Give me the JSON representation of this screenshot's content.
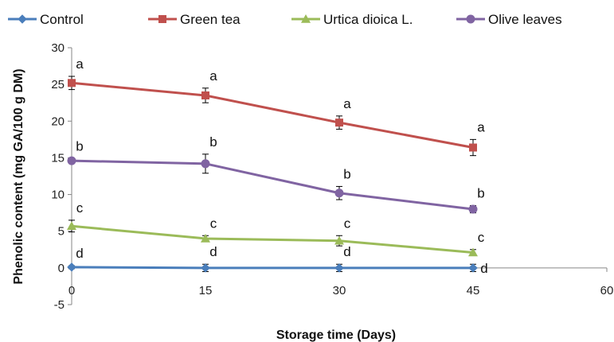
{
  "chart_data": {
    "type": "line",
    "xlabel": "Storage time (Days)",
    "ylabel": "Phenolic content (mg GA/100 g DM)",
    "x": [
      0,
      15,
      30,
      45
    ],
    "xlim": [
      0,
      60
    ],
    "xticks": [
      0,
      15,
      30,
      45,
      60
    ],
    "ylim": [
      -5,
      30
    ],
    "yticks": [
      -5,
      0,
      5,
      10,
      15,
      20,
      25,
      30
    ],
    "grid": false,
    "legend_position": "top",
    "series": [
      {
        "name": "Control",
        "color": "#4a7ebb",
        "marker": "diamond",
        "values": [
          0.1,
          0.0,
          0.0,
          0.0
        ],
        "errors": [
          0.2,
          0.5,
          0.5,
          0.5
        ],
        "labels": [
          "d",
          "d",
          "d",
          "d"
        ]
      },
      {
        "name": "Green tea",
        "color": "#c0504d",
        "marker": "square",
        "values": [
          25.2,
          23.5,
          19.8,
          16.4
        ],
        "errors": [
          0.9,
          1.0,
          0.9,
          1.1
        ],
        "labels": [
          "a",
          "a",
          "a",
          "a"
        ]
      },
      {
        "name": "Urtica dioica L.",
        "color": "#9bbb59",
        "marker": "triangle",
        "values": [
          5.7,
          4.0,
          3.7,
          2.1
        ],
        "errors": [
          0.8,
          0.4,
          0.7,
          0.4
        ],
        "labels": [
          "c",
          "c",
          "c",
          "c"
        ]
      },
      {
        "name": "Olive leaves",
        "color": "#8064a2",
        "marker": "circle",
        "values": [
          14.6,
          14.2,
          10.2,
          8.0
        ],
        "errors": [
          0.3,
          1.3,
          0.9,
          0.5
        ],
        "labels": [
          "b",
          "b",
          "b",
          "b"
        ]
      }
    ]
  }
}
